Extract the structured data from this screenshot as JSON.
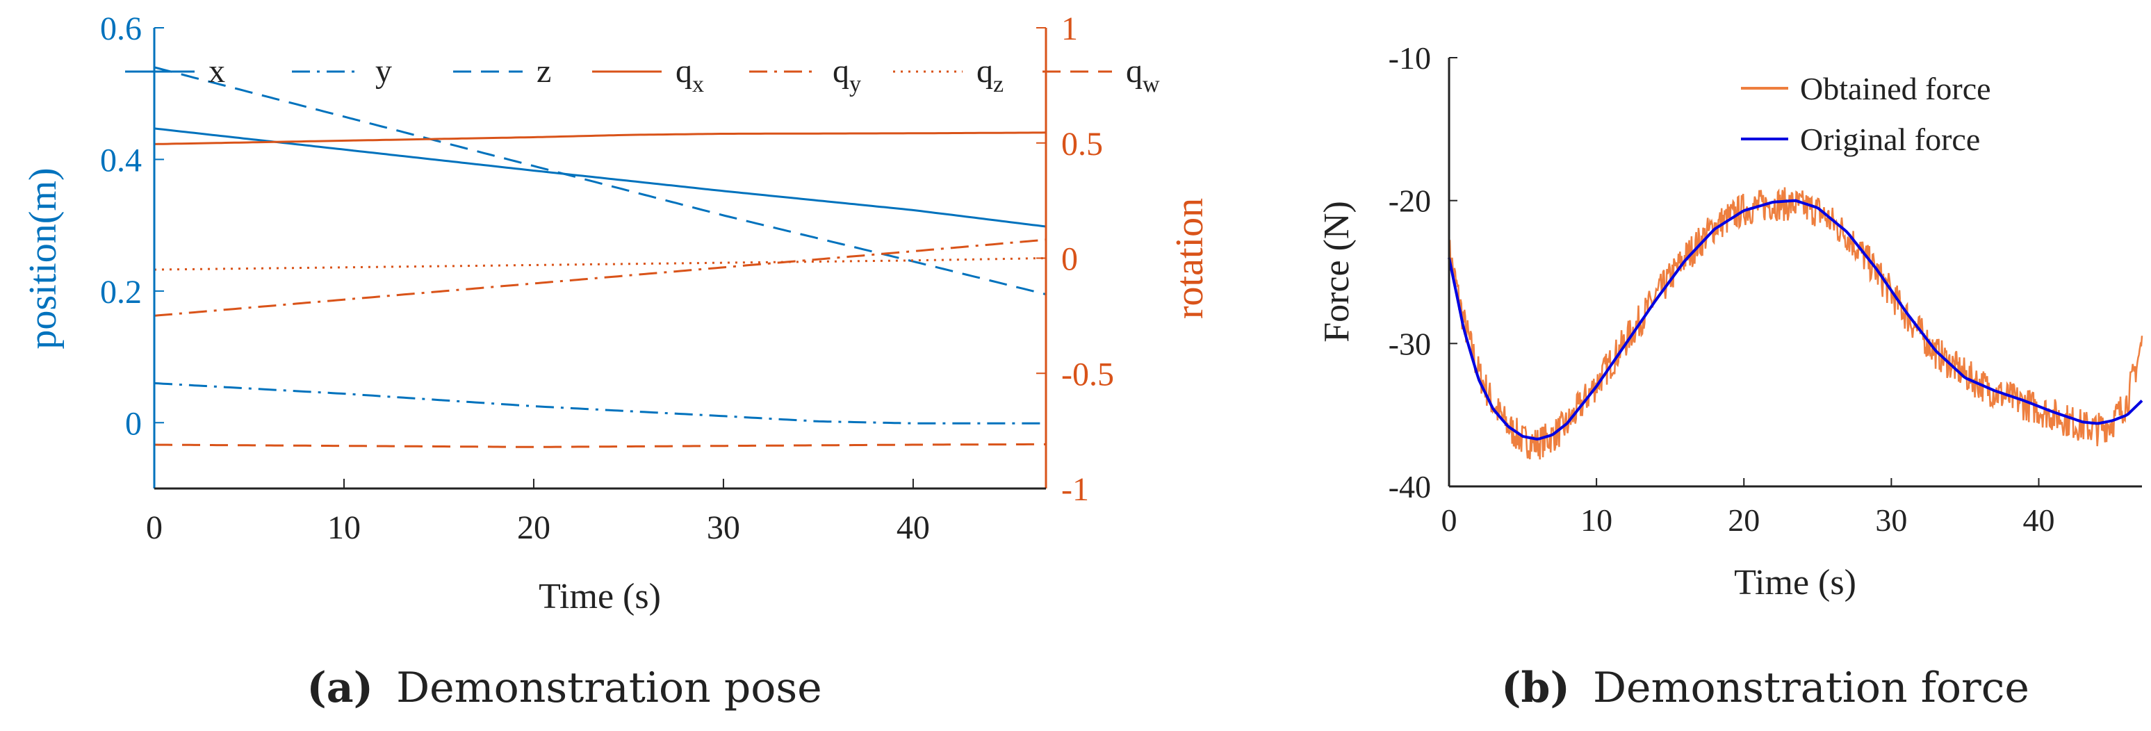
{
  "colors": {
    "blue": "#0072BD",
    "orange": "#D95319",
    "obtained": "#EE7F3F",
    "original": "#0000E0",
    "axis": "#222222"
  },
  "captions": {
    "a_label": "(a)",
    "a_text": "Demonstration pose",
    "b_label": "(b)",
    "b_text": "Demonstration force"
  },
  "chart_data": [
    {
      "type": "line",
      "xlabel": "Time (s)",
      "ylabel_left": "position(m)",
      "ylabel_right": "rotation",
      "xlim": [
        0,
        47
      ],
      "ylim_left": [
        -0.1,
        0.6
      ],
      "ylim_right": [
        -1,
        1
      ],
      "xticks": [
        0,
        10,
        20,
        30,
        40
      ],
      "yticks_left": [
        0,
        0.2,
        0.4,
        0.6
      ],
      "yticks_left_labels": [
        "0",
        "0.2",
        "0.4",
        "0.6"
      ],
      "yticks_right": [
        -1,
        -0.5,
        0,
        0.5,
        1
      ],
      "yticks_right_labels": [
        "-1",
        "-0.5",
        "0",
        "0.5",
        "1"
      ],
      "legend": {
        "position": "top",
        "entries": [
          {
            "base": "x",
            "sub": ""
          },
          {
            "base": "y",
            "sub": ""
          },
          {
            "base": "z",
            "sub": ""
          },
          {
            "base": "q",
            "sub": "x"
          },
          {
            "base": "q",
            "sub": "y"
          },
          {
            "base": "q",
            "sub": "z"
          },
          {
            "base": "q",
            "sub": "w"
          }
        ]
      },
      "series": [
        {
          "name": "x",
          "axis": "left",
          "style": "solid",
          "color": "blue",
          "x": [
            0,
            10,
            20,
            30,
            40,
            47
          ],
          "values": [
            0.447,
            0.415,
            0.383,
            0.352,
            0.323,
            0.298
          ]
        },
        {
          "name": "y",
          "axis": "left",
          "style": "dashdot",
          "color": "blue",
          "x": [
            0,
            10,
            20,
            30,
            35,
            40,
            47
          ],
          "values": [
            0.06,
            0.044,
            0.025,
            0.01,
            0.002,
            -0.001,
            -0.001
          ]
        },
        {
          "name": "z",
          "axis": "left",
          "style": "dash",
          "color": "blue",
          "x": [
            0,
            10,
            20,
            30,
            40,
            47
          ],
          "values": [
            0.54,
            0.465,
            0.39,
            0.315,
            0.245,
            0.195
          ]
        },
        {
          "name": "q_x",
          "axis": "right",
          "style": "solid",
          "color": "orange",
          "x": [
            0,
            10,
            20,
            25,
            30,
            40,
            47
          ],
          "values": [
            0.495,
            0.51,
            0.525,
            0.535,
            0.54,
            0.542,
            0.545
          ]
        },
        {
          "name": "q_y",
          "axis": "right",
          "style": "dashdot",
          "color": "orange",
          "x": [
            0,
            10,
            20,
            30,
            40,
            47
          ],
          "values": [
            -0.25,
            -0.18,
            -0.11,
            -0.04,
            0.03,
            0.08
          ]
        },
        {
          "name": "q_z",
          "axis": "right",
          "style": "dot",
          "color": "orange",
          "x": [
            0,
            10,
            20,
            30,
            40,
            47
          ],
          "values": [
            -0.05,
            -0.04,
            -0.03,
            -0.02,
            -0.01,
            0.0
          ]
        },
        {
          "name": "q_w",
          "axis": "right",
          "style": "dash",
          "color": "orange",
          "x": [
            0,
            10,
            20,
            30,
            40,
            47
          ],
          "values": [
            -0.81,
            -0.815,
            -0.82,
            -0.815,
            -0.81,
            -0.808
          ]
        }
      ]
    },
    {
      "type": "line",
      "xlabel": "Time (s)",
      "ylabel": "Force (N)",
      "xlim": [
        0,
        47
      ],
      "ylim": [
        -40,
        -10
      ],
      "xticks": [
        0,
        10,
        20,
        30,
        40
      ],
      "yticks": [
        -40,
        -30,
        -20,
        -10
      ],
      "yticks_labels": [
        "-40",
        "-30",
        "-20",
        "-10"
      ],
      "legend": {
        "position": "top-right",
        "entries": [
          "Obtained force",
          "Original force"
        ]
      },
      "series": [
        {
          "name": "Original force",
          "color": "original",
          "noise": 0,
          "x": [
            0,
            1,
            2,
            3,
            4,
            5,
            6,
            7,
            8,
            10,
            12,
            14,
            16,
            18,
            20,
            22,
            23.5,
            25,
            27,
            29,
            31,
            33,
            35,
            37,
            39,
            41,
            43,
            44,
            45,
            46,
            47
          ],
          "values": [
            -24,
            -29,
            -32.5,
            -34.6,
            -35.8,
            -36.5,
            -36.7,
            -36.4,
            -35.6,
            -33,
            -30,
            -27,
            -24.2,
            -22,
            -20.7,
            -20.1,
            -20,
            -20.5,
            -22.2,
            -24.8,
            -27.8,
            -30.5,
            -32.4,
            -33.3,
            -34,
            -34.8,
            -35.5,
            -35.6,
            -35.4,
            -35,
            -34
          ]
        },
        {
          "name": "Obtained force",
          "color": "obtained",
          "noise": 1.2,
          "x": [
            0,
            1,
            2,
            3,
            4,
            5,
            6,
            7,
            8,
            10,
            12,
            14,
            16,
            18,
            20,
            22,
            23.5,
            25,
            27,
            29,
            31,
            33,
            35,
            37,
            39,
            41,
            43,
            44,
            45,
            46,
            47
          ],
          "values": [
            -23.5,
            -28.5,
            -32,
            -34.3,
            -35.8,
            -36.8,
            -37,
            -36.5,
            -35.7,
            -32.8,
            -29.8,
            -26.8,
            -24,
            -21.8,
            -20.6,
            -20.2,
            -20.3,
            -20.7,
            -22.4,
            -25,
            -28,
            -30.6,
            -32.2,
            -33.4,
            -34.2,
            -35,
            -35.8,
            -36,
            -35.5,
            -34,
            -30
          ]
        }
      ]
    }
  ]
}
